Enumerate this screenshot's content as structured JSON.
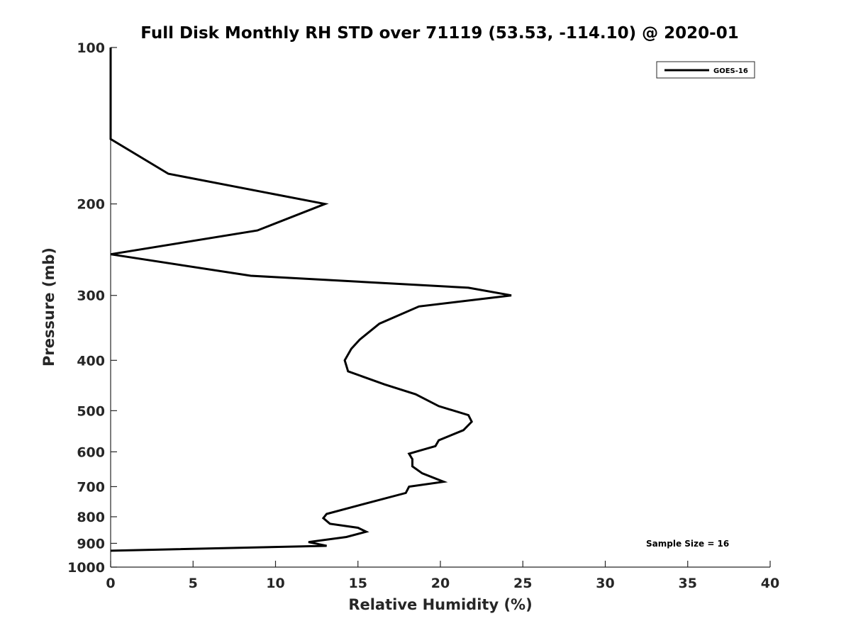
{
  "chart_data": {
    "type": "line",
    "title": "Full Disk Monthly RH STD over 71119 (53.53, -114.10) @ 2020-01",
    "xlabel": "Relative Humidity (%)",
    "ylabel": "Pressure (mb)",
    "xlim": [
      0,
      40
    ],
    "ylim": [
      100,
      1000
    ],
    "y_scale": "log",
    "y_reversed": true,
    "x_ticks": [
      0,
      5,
      10,
      15,
      20,
      25,
      30,
      35,
      40
    ],
    "y_ticks": [
      100,
      200,
      300,
      400,
      500,
      600,
      700,
      800,
      900,
      1000
    ],
    "grid": false,
    "legend_position": "top-right",
    "annotation": "Sample Size = 16",
    "series": [
      {
        "name": "GOES-16",
        "color": "#000000",
        "points": [
          {
            "x": 0.0,
            "p": 100
          },
          {
            "x": 0.0,
            "p": 150
          },
          {
            "x": 3.5,
            "p": 175
          },
          {
            "x": 13.0,
            "p": 200
          },
          {
            "x": 8.9,
            "p": 225
          },
          {
            "x": 0.0,
            "p": 250
          },
          {
            "x": 8.5,
            "p": 275
          },
          {
            "x": 21.7,
            "p": 290
          },
          {
            "x": 24.3,
            "p": 300
          },
          {
            "x": 18.7,
            "p": 315
          },
          {
            "x": 16.3,
            "p": 340
          },
          {
            "x": 15.1,
            "p": 365
          },
          {
            "x": 14.6,
            "p": 380
          },
          {
            "x": 14.2,
            "p": 400
          },
          {
            "x": 14.4,
            "p": 420
          },
          {
            "x": 16.6,
            "p": 445
          },
          {
            "x": 18.5,
            "p": 465
          },
          {
            "x": 19.9,
            "p": 490
          },
          {
            "x": 21.7,
            "p": 510
          },
          {
            "x": 21.9,
            "p": 525
          },
          {
            "x": 21.4,
            "p": 545
          },
          {
            "x": 19.9,
            "p": 570
          },
          {
            "x": 19.7,
            "p": 585
          },
          {
            "x": 18.1,
            "p": 605
          },
          {
            "x": 18.3,
            "p": 620
          },
          {
            "x": 18.3,
            "p": 640
          },
          {
            "x": 18.9,
            "p": 660
          },
          {
            "x": 20.2,
            "p": 685
          },
          {
            "x": 18.1,
            "p": 700
          },
          {
            "x": 17.9,
            "p": 720
          },
          {
            "x": 15.1,
            "p": 760
          },
          {
            "x": 13.1,
            "p": 790
          },
          {
            "x": 12.9,
            "p": 805
          },
          {
            "x": 13.3,
            "p": 825
          },
          {
            "x": 15.0,
            "p": 840
          },
          {
            "x": 15.5,
            "p": 855
          },
          {
            "x": 14.3,
            "p": 875
          },
          {
            "x": 12.0,
            "p": 895
          },
          {
            "x": 13.1,
            "p": 910
          },
          {
            "x": 0.0,
            "p": 930
          }
        ]
      }
    ]
  }
}
